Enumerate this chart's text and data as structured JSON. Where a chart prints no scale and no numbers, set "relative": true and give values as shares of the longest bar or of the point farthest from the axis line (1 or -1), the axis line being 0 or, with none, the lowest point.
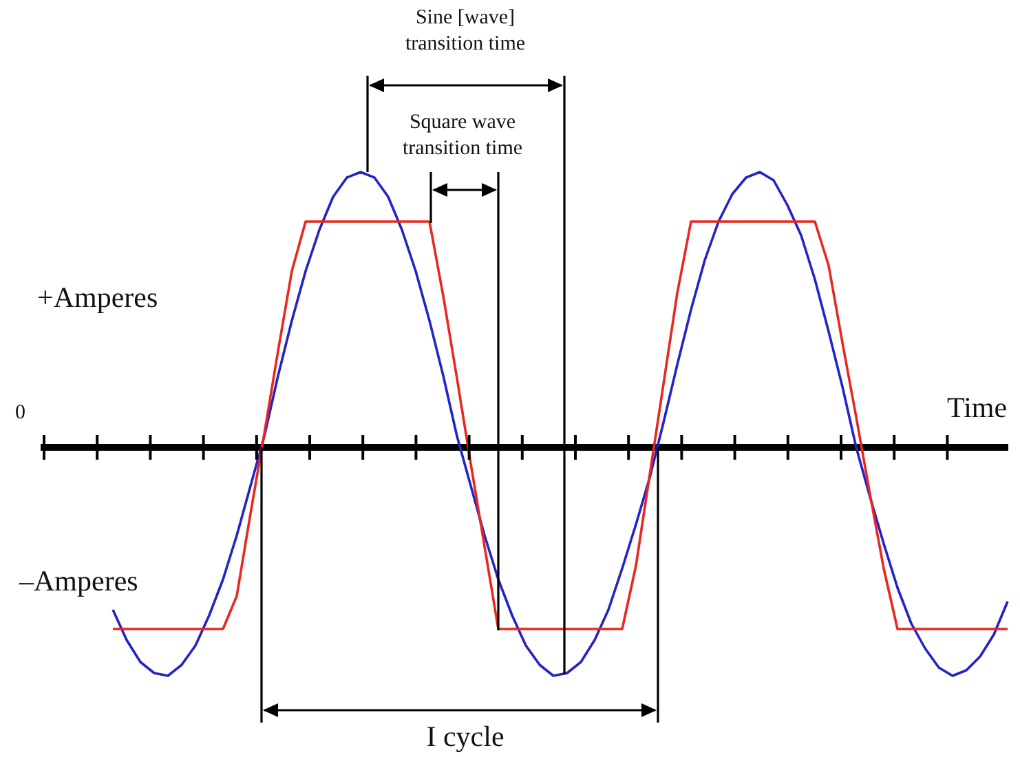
{
  "chart_data": {
    "type": "line",
    "relative": true,
    "xlabel": "Time",
    "legend": false,
    "grid": false,
    "marker": "none",
    "line_style": "solid",
    "categories": [
      null,
      null,
      null,
      null,
      null,
      null,
      null,
      null,
      null,
      null,
      null,
      null,
      null,
      null,
      null,
      null,
      null,
      null,
      null,
      null,
      null,
      null,
      null,
      null,
      null,
      null,
      null,
      null,
      null,
      null,
      null,
      null,
      null,
      null,
      null,
      null,
      null,
      null,
      null,
      null,
      null,
      null,
      null,
      null,
      null,
      null,
      null,
      null,
      null,
      null,
      null,
      null,
      null,
      null,
      null,
      null,
      null,
      null,
      null,
      null,
      null,
      null,
      null,
      null,
      null,
      null,
      null,
      null,
      null,
      null,
      null
    ],
    "series": [
      {
        "color": "#e8281e",
        "values": [
          null,
          null,
          null,
          null,
          null,
          -0.66,
          -0.66,
          -0.66,
          -0.66,
          -0.66,
          -0.66,
          -0.66,
          -0.66,
          -0.66,
          -0.54,
          -0.24,
          0.05,
          0.35,
          0.64,
          0.82,
          0.82,
          0.82,
          0.82,
          0.82,
          0.82,
          0.82,
          0.82,
          0.82,
          0.82,
          0.55,
          0.25,
          -0.06,
          -0.36,
          -0.66,
          -0.66,
          -0.66,
          -0.66,
          -0.66,
          -0.66,
          -0.66,
          -0.66,
          -0.66,
          -0.66,
          -0.43,
          -0.1,
          0.23,
          0.56,
          0.82,
          0.82,
          0.82,
          0.82,
          0.82,
          0.82,
          0.82,
          0.82,
          0.82,
          0.82,
          0.66,
          0.38,
          0.11,
          -0.17,
          -0.44,
          -0.66,
          -0.66,
          -0.66,
          -0.66,
          -0.66,
          -0.66,
          -0.66,
          -0.66,
          -0.66
        ]
      },
      {
        "color": "#2323c8",
        "values": [
          null,
          null,
          null,
          null,
          null,
          -0.59,
          -0.7,
          -0.78,
          -0.82,
          -0.83,
          -0.79,
          -0.72,
          -0.61,
          -0.48,
          -0.32,
          -0.14,
          0.04,
          0.26,
          0.46,
          0.64,
          0.79,
          0.91,
          0.98,
          1,
          0.98,
          0.91,
          0.79,
          0.64,
          0.46,
          0.26,
          0.04,
          -0.14,
          -0.32,
          -0.48,
          -0.61,
          -0.72,
          -0.79,
          -0.83,
          -0.82,
          -0.78,
          -0.7,
          -0.59,
          -0.44,
          -0.28,
          -0.11,
          0.09,
          0.3,
          0.5,
          0.68,
          0.82,
          0.92,
          0.98,
          1,
          0.97,
          0.88,
          0.77,
          0.61,
          0.42,
          0.22,
          0,
          -0.18,
          -0.35,
          -0.51,
          -0.64,
          -0.73,
          -0.8,
          -0.83,
          -0.81,
          -0.76,
          -0.68,
          -0.56
        ]
      }
    ],
    "annotations": [
      "Sine [wave] transition time",
      "Square wave transition time",
      "+Amperes",
      "0",
      "–Amperes",
      "I cycle"
    ]
  }
}
